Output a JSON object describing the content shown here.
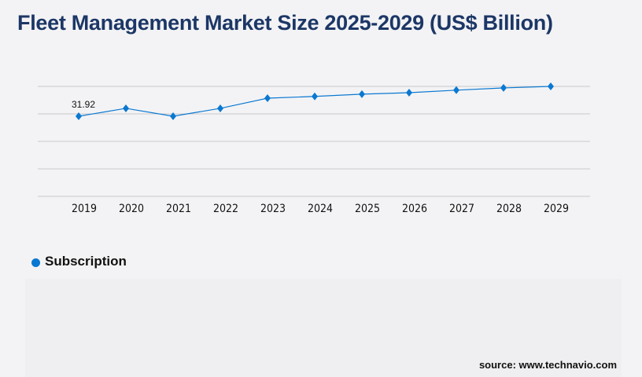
{
  "title": "Fleet Management Market Size 2025-2029 (US$ Billion)",
  "source": "source: www.technavio.com",
  "colors": {
    "series": "#0a78d1",
    "title": "#1c3766",
    "grid": "#c8c8cc"
  },
  "chart_data": {
    "type": "line",
    "title": "Fleet Management Market Size 2025-2029 (US$ Billion)",
    "categories": [
      "2019",
      "2020",
      "2021",
      "2022",
      "2023",
      "2024",
      "2025",
      "2026",
      "2027",
      "2028",
      "2029"
    ],
    "series": [
      {
        "name": "Subscription",
        "values": [
          31.92,
          35.05,
          31.92,
          35.05,
          39.1,
          39.8,
          40.7,
          41.3,
          42.3,
          43.2,
          43.8
        ],
        "marker": "diamond"
      }
    ],
    "data_labels": [
      {
        "category": "2019",
        "text": "31.92"
      }
    ],
    "ylim": [
      0,
      43.8
    ],
    "y_tick_labels_shown": false,
    "grid": true,
    "legend": "bottom-left"
  }
}
